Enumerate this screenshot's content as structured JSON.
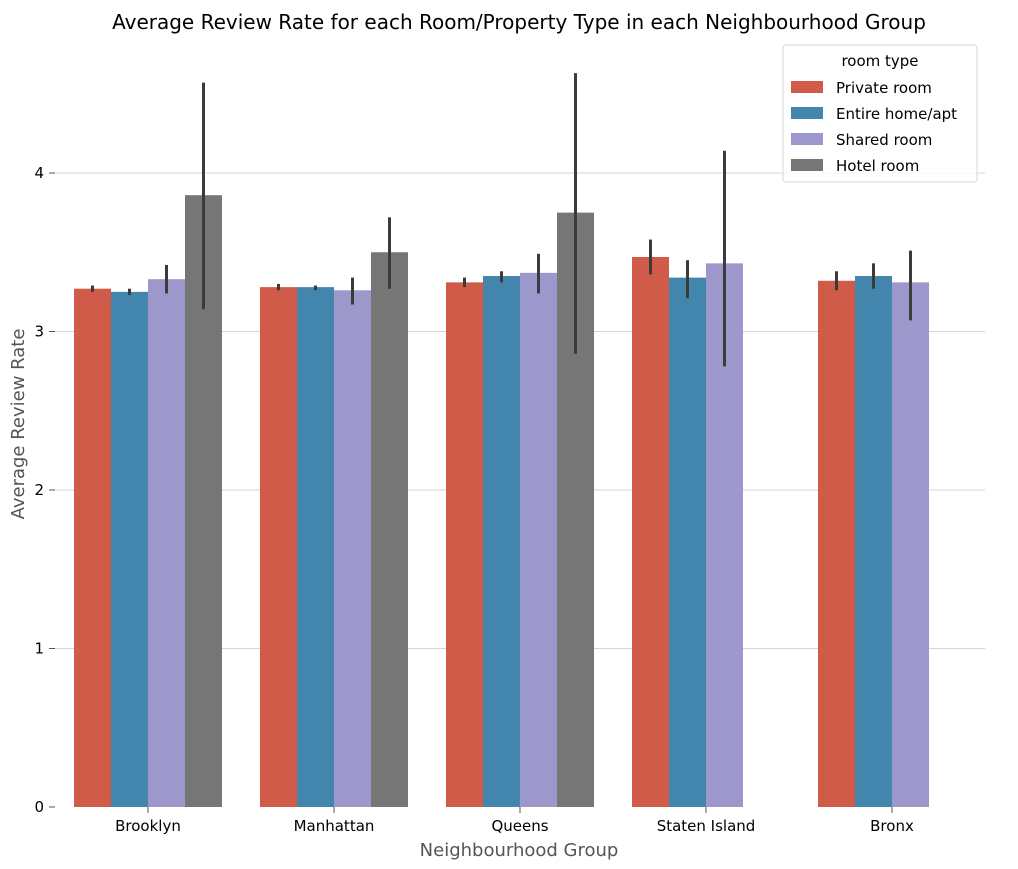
{
  "chart_data": {
    "type": "bar",
    "title": "Average Review Rate for each Room/Property Type in each Neighbourhood Group",
    "xlabel": "Neighbourhood Group",
    "ylabel": "Average Review Rate",
    "categories": [
      "Brooklyn",
      "Manhattan",
      "Queens",
      "Staten Island",
      "Bronx"
    ],
    "ylim": [
      0,
      4.75
    ],
    "yticks": [
      0,
      1,
      2,
      3,
      4
    ],
    "grid": "horizontal",
    "legend": {
      "title": "room type",
      "placement": "top-right"
    },
    "series": [
      {
        "name": "Private room",
        "color": "#cf5b48",
        "values": [
          3.27,
          3.28,
          3.31,
          3.47,
          3.32
        ],
        "error_low": [
          3.25,
          3.26,
          3.28,
          3.36,
          3.26
        ],
        "error_high": [
          3.29,
          3.3,
          3.34,
          3.58,
          3.38
        ]
      },
      {
        "name": "Entire home/apt",
        "color": "#4386ad",
        "values": [
          3.25,
          3.28,
          3.35,
          3.34,
          3.35
        ],
        "error_low": [
          3.23,
          3.26,
          3.31,
          3.21,
          3.27
        ],
        "error_high": [
          3.27,
          3.29,
          3.38,
          3.45,
          3.43
        ]
      },
      {
        "name": "Shared room",
        "color": "#9d98cb",
        "values": [
          3.33,
          3.26,
          3.37,
          3.43,
          3.31
        ],
        "error_low": [
          3.24,
          3.17,
          3.24,
          2.78,
          3.07
        ],
        "error_high": [
          3.42,
          3.34,
          3.49,
          4.14,
          3.51
        ]
      },
      {
        "name": "Hotel room",
        "color": "#767676",
        "values": [
          3.86,
          3.5,
          3.75,
          null,
          null
        ],
        "error_low": [
          3.14,
          3.27,
          2.86,
          null,
          null
        ],
        "error_high": [
          4.57,
          3.72,
          4.63,
          null,
          null
        ]
      }
    ]
  }
}
